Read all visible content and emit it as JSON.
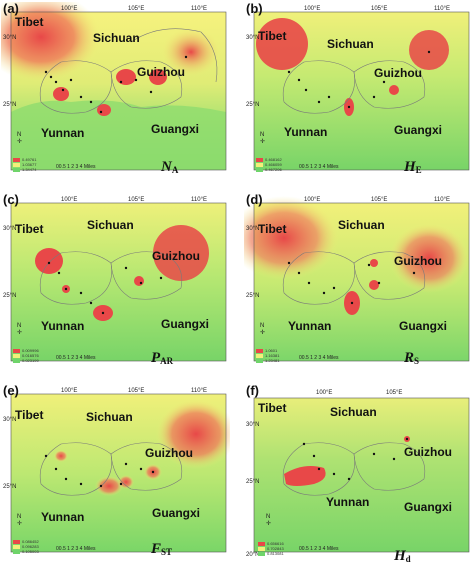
{
  "panels": [
    {
      "id": "a",
      "label": "(a)",
      "metric": {
        "base": "N",
        "sub": "A"
      },
      "coords": {
        "x1": "100°E",
        "x2": "105°E",
        "x3": "110°E",
        "y1": "30°N",
        "y2": "25°N"
      },
      "legend": [
        "0.49761",
        "1.03677",
        "1.34474"
      ],
      "scale": {
        "ticks": "00.5 1   2    3    4",
        "unit": "Miles"
      }
    },
    {
      "id": "b",
      "label": "(b)",
      "metric": {
        "base": "H",
        "sub": "E"
      },
      "coords": {
        "x1": "100°E",
        "x2": "105°E",
        "x3": "110°E",
        "y1": "30°N",
        "y2": "25°N"
      },
      "legend": [
        "0.468162",
        "0.466059",
        "0.467206"
      ],
      "scale": {
        "ticks": "00.5 1   2    3    4",
        "unit": "Miles"
      }
    },
    {
      "id": "c",
      "label": "(c)",
      "metric": {
        "base": "P",
        "sub": "AR"
      },
      "coords": {
        "x1": "100°E",
        "x2": "105°E",
        "x3": "110°E",
        "y1": "30°N",
        "y2": "25°N"
      },
      "legend": [
        "0.009996",
        "0.016576",
        "0.023199"
      ],
      "scale": {
        "ticks": "00.5 1   2    3    4",
        "unit": "Miles"
      }
    },
    {
      "id": "d",
      "label": "(d)",
      "metric": {
        "base": "R",
        "sub": "S"
      },
      "coords": {
        "x1": "100°E",
        "x2": "105°E",
        "x3": "110°E",
        "y1": "30°N",
        "y2": "25°N"
      },
      "legend": [
        "1.0601",
        "1.16381",
        "1.23481"
      ],
      "scale": {
        "ticks": "00.5 1   2    3    4",
        "unit": "Miles"
      }
    },
    {
      "id": "e",
      "label": "(e)",
      "metric": {
        "base": "F",
        "sub": "ST"
      },
      "coords": {
        "x1": "100°E",
        "x2": "105°E",
        "x3": "110°E",
        "y1": "30°N",
        "y2": "25°N"
      },
      "legend": [
        "0.086452",
        "0.096283",
        "0.105003"
      ],
      "scale": {
        "ticks": "00.5 1   2    3    4",
        "unit": "Miles"
      }
    },
    {
      "id": "f",
      "label": "(f)",
      "metric": {
        "base": "H",
        "sub": "d"
      },
      "coords": {
        "x1": "100°E",
        "x2": "105°E",
        "x3": "",
        "y1": "30°N",
        "y2": "25°N",
        "y3": "20°N"
      },
      "legend": [
        "0.656616",
        "0.702843",
        "0.813081"
      ],
      "scale": {
        "ticks": "00.5 1   2    3    4",
        "unit": "Miles"
      }
    }
  ],
  "regions": {
    "tibet": "Tibet",
    "sichuan": "Sichuan",
    "guizhou": "Guizhou",
    "yunnan": "Yunnan",
    "guangxi": "Guangxi"
  },
  "compass_label": "N",
  "colors": {
    "low": "#6fd46a",
    "mid": "#f2f07a",
    "high": "#e84848",
    "boundary": "#7a7a7a"
  }
}
